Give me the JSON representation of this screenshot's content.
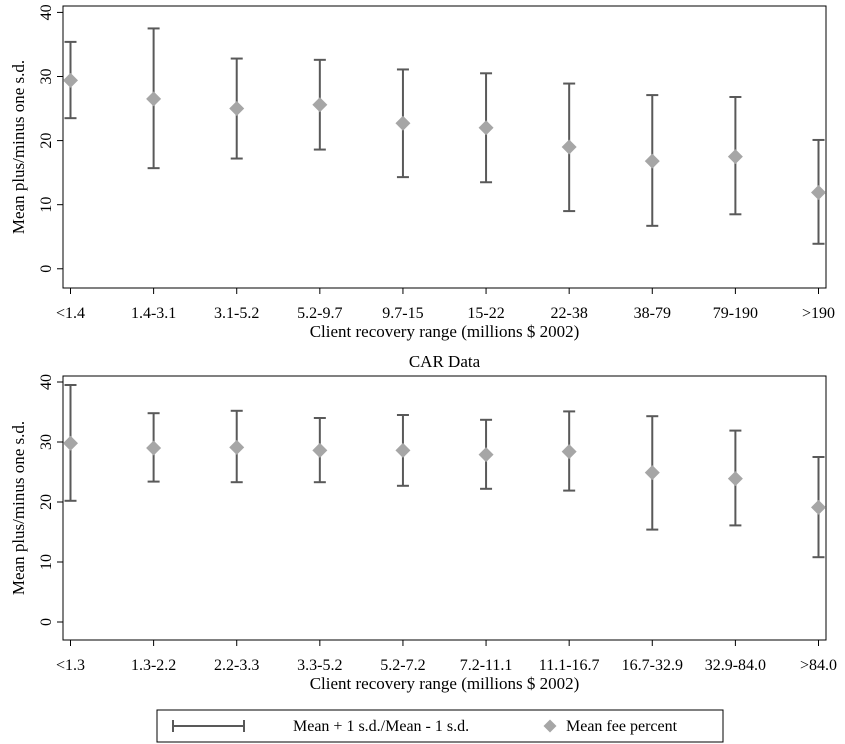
{
  "chart_data": [
    {
      "type": "errorbar",
      "title": "",
      "xlabel": "Client recovery range (millions $ 2002)",
      "ylabel": "Mean plus/minus one s.d.",
      "ylim": [
        -3,
        41
      ],
      "yticks": [
        0,
        10,
        20,
        30,
        40
      ],
      "ytick_labels": [
        "0",
        "10",
        "20",
        "30",
        "40"
      ],
      "categories": [
        "<1.4",
        "1.4-3.1",
        "3.1-5.2",
        "5.2-9.7",
        "9.7-15",
        "15-22",
        "22-38",
        "38-79",
        "79-190",
        ">190"
      ],
      "mean": [
        29.4,
        26.5,
        25.0,
        25.6,
        22.7,
        22.0,
        19.0,
        16.8,
        17.5,
        11.9
      ],
      "upper": [
        35.4,
        37.5,
        32.8,
        32.6,
        31.1,
        30.5,
        28.9,
        27.1,
        26.8,
        20.1
      ],
      "lower": [
        23.5,
        15.7,
        17.2,
        18.6,
        14.3,
        13.5,
        9.0,
        6.7,
        8.5,
        3.9
      ],
      "grid": false
    },
    {
      "type": "errorbar",
      "title": "CAR Data",
      "xlabel": "Client recovery range (millions $ 2002)",
      "ylabel": "Mean plus/minus one s.d.",
      "ylim": [
        -3,
        41
      ],
      "yticks": [
        0,
        10,
        20,
        30,
        40
      ],
      "ytick_labels": [
        "0",
        "10",
        "20",
        "30",
        "40"
      ],
      "categories": [
        "<1.3",
        "1.3-2.2",
        "2.2-3.3",
        "3.3-5.2",
        "5.2-7.2",
        "7.2-11.1",
        "11.1-16.7",
        "16.7-32.9",
        "32.9-84.0",
        ">84.0"
      ],
      "mean": [
        29.8,
        29.0,
        29.1,
        28.6,
        28.6,
        27.9,
        28.4,
        24.9,
        23.9,
        19.1
      ],
      "upper": [
        39.5,
        34.8,
        35.2,
        34.0,
        34.5,
        33.7,
        35.1,
        34.3,
        31.9,
        27.5
      ],
      "lower": [
        20.2,
        23.4,
        23.3,
        23.3,
        22.7,
        22.2,
        21.9,
        15.4,
        16.1,
        10.8
      ],
      "grid": false
    }
  ],
  "legend": {
    "errorbar_label": "Mean + 1 s.d./Mean - 1 s.d.",
    "marker_label": "Mean fee percent",
    "placement": "bottom-center"
  },
  "colors": {
    "errorbar": "#595959",
    "marker": "#a6a6a6",
    "axis": "#000000"
  }
}
